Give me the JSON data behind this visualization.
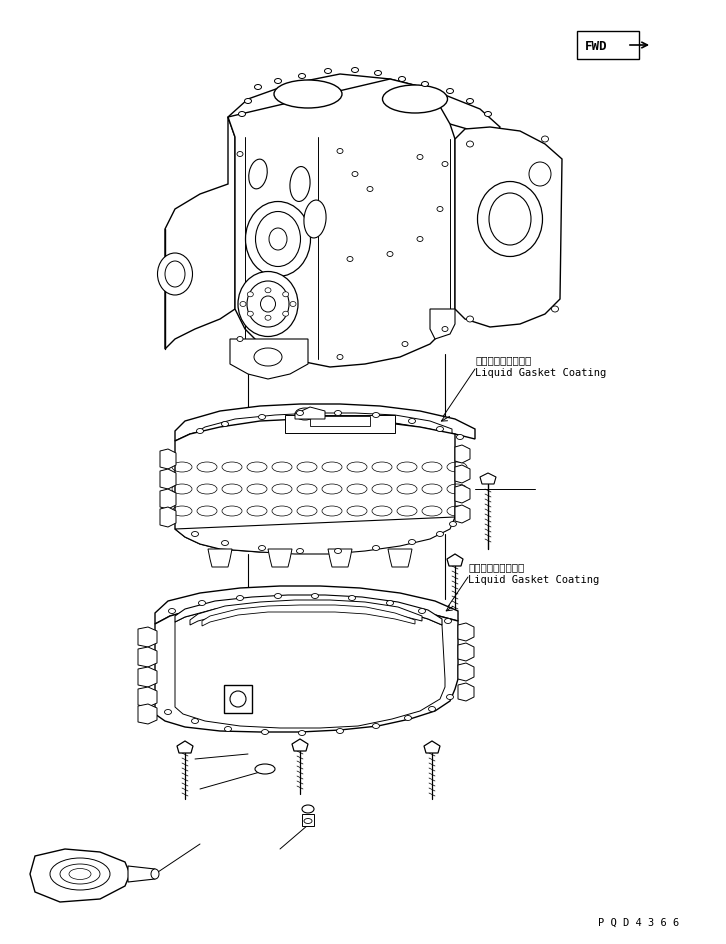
{
  "bg_color": "#ffffff",
  "line_color": "#000000",
  "annotation1_jp": "液状ガスケット塗布",
  "annotation1_en": "Liquid Gasket Coating",
  "annotation2_jp": "液状ガスケット塗布",
  "annotation2_en": "Liquid Gasket Coating",
  "part_number": "P Q D 4 3 6 6",
  "fwd_label": "FWD",
  "fig_width": 7.26,
  "fig_height": 9.45,
  "dpi": 100
}
